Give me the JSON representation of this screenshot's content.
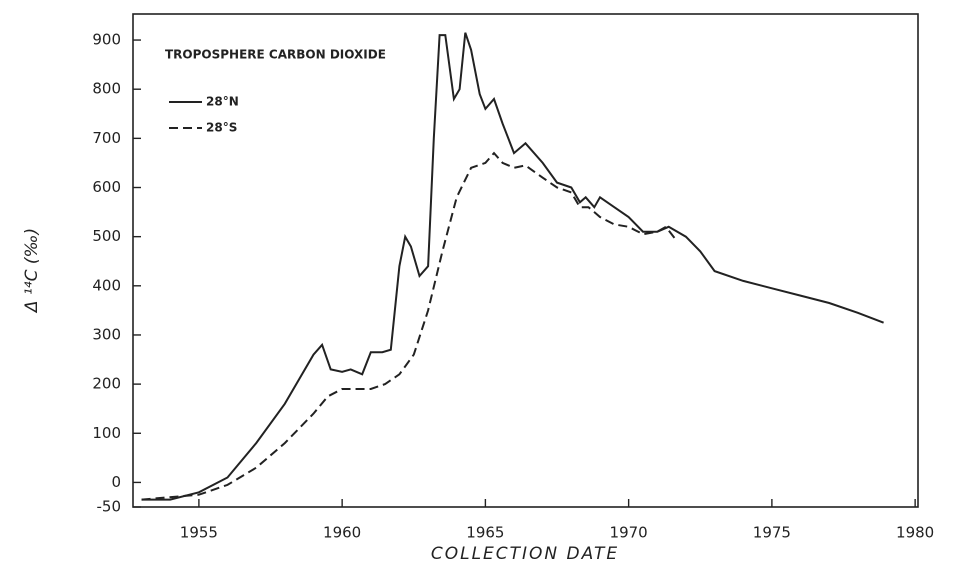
{
  "chart_data": {
    "type": "line",
    "title": "TROPOSPHERE CARBON DIOXIDE",
    "xlabel": "COLLECTION DATE",
    "ylabel": "Δ ¹⁴C (‰)",
    "xlim": [
      1952.7,
      1980.1
    ],
    "ylim": [
      -50,
      953
    ],
    "xticks": [
      1955,
      1960,
      1965,
      1970,
      1975,
      1980
    ],
    "yticks": [
      -50,
      0,
      100,
      200,
      300,
      400,
      500,
      600,
      700,
      800,
      900
    ],
    "grid": false,
    "legend": "upper left",
    "series": [
      {
        "name": "28°N",
        "color": "#222222",
        "style": "solid",
        "x": [
          1953,
          1954,
          1955,
          1956,
          1957,
          1958,
          1959,
          1959.3,
          1959.6,
          1960,
          1960.3,
          1960.7,
          1961,
          1961.4,
          1961.7,
          1962,
          1962.2,
          1962.4,
          1962.7,
          1963,
          1963.2,
          1963.4,
          1963.6,
          1963.9,
          1964.1,
          1964.3,
          1964.5,
          1964.8,
          1965,
          1965.3,
          1965.6,
          1966,
          1966.4,
          1967,
          1967.5,
          1968,
          1968.3,
          1968.5,
          1968.8,
          1969,
          1969.5,
          1970,
          1970.5,
          1971,
          1971.4,
          1972,
          1972.5,
          1973,
          1974,
          1975,
          1976,
          1977,
          1978,
          1978.9
        ],
        "values": [
          -35,
          -35,
          -20,
          10,
          80,
          160,
          260,
          280,
          230,
          225,
          230,
          220,
          265,
          265,
          270,
          440,
          500,
          480,
          420,
          440,
          700,
          910,
          910,
          780,
          800,
          915,
          880,
          790,
          760,
          780,
          730,
          670,
          690,
          650,
          610,
          600,
          570,
          580,
          560,
          580,
          560,
          540,
          510,
          510,
          520,
          500,
          470,
          430,
          410,
          395,
          380,
          365,
          345,
          325
        ]
      },
      {
        "name": "28°S",
        "color": "#222222",
        "style": "dashed",
        "x": [
          1953,
          1955,
          1956,
          1957,
          1958,
          1959,
          1959.5,
          1960,
          1961,
          1961.5,
          1962,
          1962.5,
          1963,
          1963.5,
          1964,
          1964.5,
          1965,
          1965.3,
          1965.6,
          1966,
          1966.4,
          1967,
          1967.5,
          1968,
          1968.3,
          1968.6,
          1969,
          1969.5,
          1970,
          1970.5,
          1971,
          1971.3,
          1971.7
        ],
        "values": [
          -35,
          -25,
          -5,
          30,
          80,
          140,
          175,
          190,
          190,
          200,
          220,
          260,
          350,
          470,
          580,
          640,
          650,
          670,
          650,
          640,
          645,
          620,
          600,
          590,
          560,
          560,
          540,
          525,
          520,
          505,
          510,
          520,
          490
        ]
      }
    ]
  }
}
